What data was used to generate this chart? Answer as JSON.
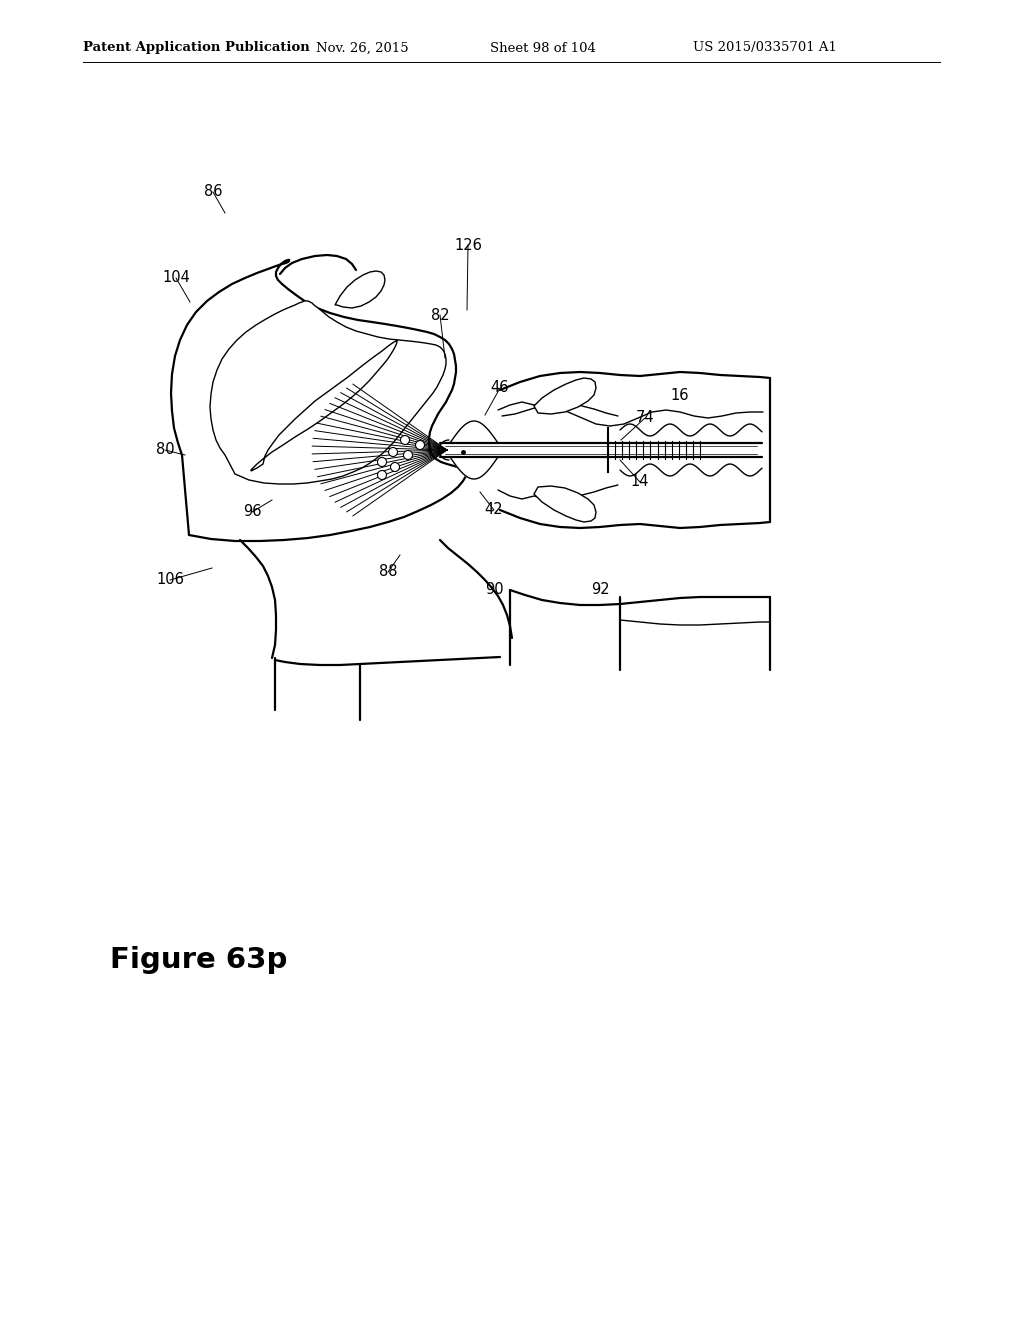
{
  "bg_color": "#ffffff",
  "line_color": "#000000",
  "header_left": "Patent Application Publication",
  "header_mid": "Nov. 26, 2015",
  "header_sheet": "Sheet 98 of 104",
  "header_patent": "US 2015/0335701 A1",
  "figure_label": "Figure 63p",
  "header_fontsize": 9.5,
  "figure_fontsize": 21,
  "label_fontsize": 10.5
}
